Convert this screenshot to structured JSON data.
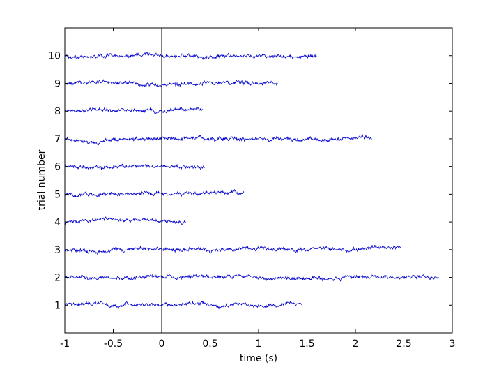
{
  "chart_data": {
    "type": "line",
    "title": "",
    "xlabel": "time (s)",
    "ylabel": "trial number",
    "xlim": [
      -1,
      3
    ],
    "ylim": [
      0,
      11
    ],
    "xticks": [
      -1,
      -0.5,
      0,
      0.5,
      1,
      1.5,
      2,
      2.5,
      3
    ],
    "xtick_labels": [
      "-1",
      "-0.5",
      "0",
      "0.5",
      "1",
      "1.5",
      "2",
      "2.5",
      "3"
    ],
    "yticks": [
      1,
      2,
      3,
      4,
      5,
      6,
      7,
      8,
      9,
      10
    ],
    "ytick_labels": [
      "1",
      "2",
      "3",
      "4",
      "5",
      "6",
      "7",
      "8",
      "9",
      "10"
    ],
    "grid": false,
    "line_color": "#0000cc",
    "event_marker_x": 0,
    "series": [
      {
        "trial": 1,
        "x_start": -1,
        "x_end": 1.45
      },
      {
        "trial": 2,
        "x_start": -1,
        "x_end": 2.87
      },
      {
        "trial": 3,
        "x_start": -1,
        "x_end": 2.47
      },
      {
        "trial": 4,
        "x_start": -1,
        "x_end": 0.25
      },
      {
        "trial": 5,
        "x_start": -1,
        "x_end": 0.85
      },
      {
        "trial": 6,
        "x_start": -1,
        "x_end": 0.45
      },
      {
        "trial": 7,
        "x_start": -1,
        "x_end": 2.17
      },
      {
        "trial": 8,
        "x_start": -1,
        "x_end": 0.43
      },
      {
        "trial": 9,
        "x_start": -1,
        "x_end": 1.2
      },
      {
        "trial": 10,
        "x_start": -1,
        "x_end": 1.6
      }
    ]
  }
}
